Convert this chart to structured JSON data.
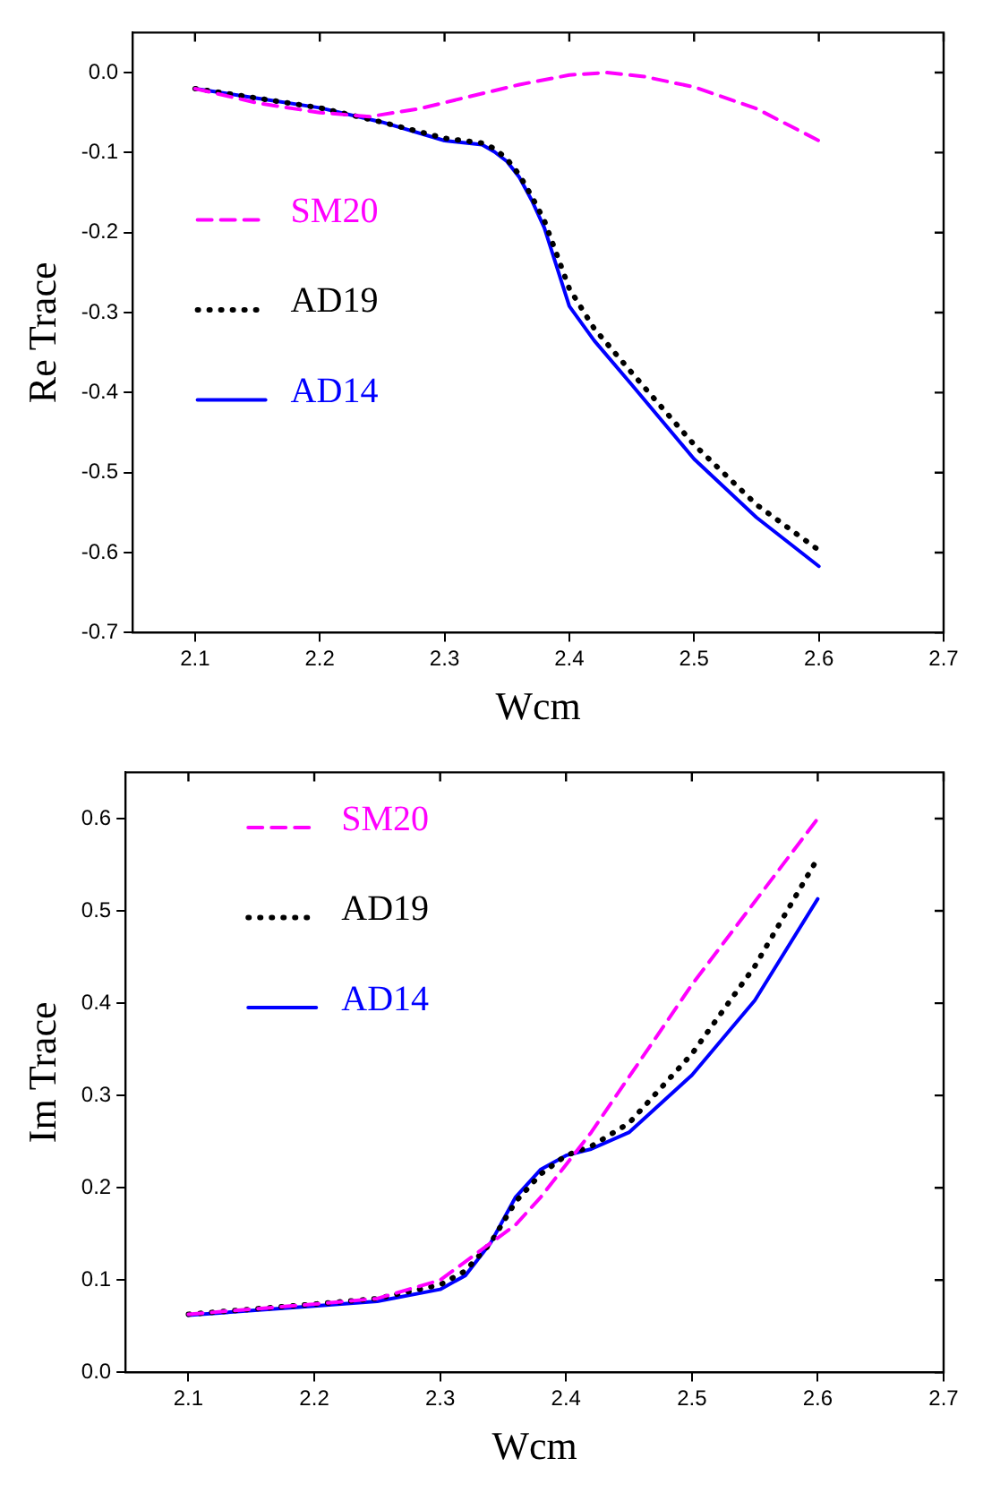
{
  "chart_data": [
    {
      "type": "line",
      "xlabel": "Wcm",
      "ylabel": "Re Trace",
      "xlim": [
        2.05,
        2.7
      ],
      "xticks": [
        2.1,
        2.2,
        2.3,
        2.4,
        2.5,
        2.6,
        2.7
      ],
      "ylim": [
        -0.7,
        0.05
      ],
      "yticks": [
        -0.7,
        -0.6,
        -0.5,
        -0.4,
        -0.3,
        -0.2,
        -0.1,
        {
          "value": 0,
          "label": "0.0"
        }
      ],
      "grid": false,
      "legend": "left",
      "marker": "none",
      "series": [
        {
          "name": "SM20",
          "color": "#ff00ff",
          "line_style": "dashed",
          "x": [
            2.1,
            2.15,
            2.2,
            2.24,
            2.28,
            2.32,
            2.36,
            2.4,
            2.43,
            2.46,
            2.5,
            2.55,
            2.6
          ],
          "values": [
            -0.02,
            -0.038,
            -0.05,
            -0.055,
            -0.045,
            -0.03,
            -0.015,
            -0.003,
            0.0,
            -0.005,
            -0.018,
            -0.045,
            -0.085
          ]
        },
        {
          "name": "AD19",
          "color": "#000000",
          "line_style": "dotted",
          "x": [
            2.1,
            2.15,
            2.2,
            2.25,
            2.3,
            2.33,
            2.34,
            2.35,
            2.36,
            2.37,
            2.38,
            2.4,
            2.42,
            2.45,
            2.5,
            2.55,
            2.6
          ],
          "values": [
            -0.02,
            -0.032,
            -0.044,
            -0.062,
            -0.082,
            -0.088,
            -0.095,
            -0.108,
            -0.128,
            -0.155,
            -0.185,
            -0.27,
            -0.32,
            -0.375,
            -0.465,
            -0.54,
            -0.597
          ]
        },
        {
          "name": "AD14",
          "color": "#0000ff",
          "line_style": "solid",
          "x": [
            2.1,
            2.15,
            2.2,
            2.25,
            2.3,
            2.33,
            2.34,
            2.35,
            2.36,
            2.37,
            2.38,
            2.4,
            2.42,
            2.45,
            2.5,
            2.55,
            2.6
          ],
          "values": [
            -0.02,
            -0.032,
            -0.044,
            -0.062,
            -0.085,
            -0.09,
            -0.099,
            -0.111,
            -0.131,
            -0.16,
            -0.194,
            -0.292,
            -0.335,
            -0.39,
            -0.483,
            -0.556,
            -0.617
          ]
        }
      ]
    },
    {
      "type": "line",
      "xlabel": "Wcm",
      "ylabel": "Im Trace",
      "xlim": [
        2.05,
        2.7
      ],
      "xticks": [
        2.1,
        2.2,
        2.3,
        2.4,
        2.5,
        2.6,
        2.7
      ],
      "ylim": [
        0,
        0.65
      ],
      "yticks": [
        {
          "value": 0,
          "label": "0.0"
        },
        0.1,
        0.2,
        0.3,
        0.4,
        0.5,
        0.6
      ],
      "grid": false,
      "legend": "top left",
      "marker": "none",
      "series": [
        {
          "name": "SM20",
          "color": "#ff00ff",
          "line_style": "dashed",
          "x": [
            2.1,
            2.2,
            2.25,
            2.3,
            2.34,
            2.36,
            2.38,
            2.4,
            2.42,
            2.45,
            2.5,
            2.55,
            2.6
          ],
          "values": [
            0.063,
            0.074,
            0.08,
            0.1,
            0.14,
            0.16,
            0.19,
            0.225,
            0.26,
            0.32,
            0.42,
            0.51,
            0.6
          ]
        },
        {
          "name": "AD19",
          "color": "#000000",
          "line_style": "dotted",
          "x": [
            2.1,
            2.2,
            2.25,
            2.3,
            2.32,
            2.34,
            2.36,
            2.38,
            2.4,
            2.42,
            2.45,
            2.5,
            2.55,
            2.6
          ],
          "values": [
            0.063,
            0.074,
            0.08,
            0.095,
            0.11,
            0.14,
            0.185,
            0.215,
            0.235,
            0.245,
            0.27,
            0.345,
            0.44,
            0.557
          ]
        },
        {
          "name": "AD14",
          "color": "#0000ff",
          "line_style": "solid",
          "x": [
            2.1,
            2.2,
            2.25,
            2.3,
            2.32,
            2.34,
            2.36,
            2.38,
            2.4,
            2.42,
            2.45,
            2.5,
            2.55,
            2.6
          ],
          "values": [
            0.062,
            0.072,
            0.077,
            0.09,
            0.105,
            0.14,
            0.19,
            0.22,
            0.235,
            0.242,
            0.26,
            0.322,
            0.403,
            0.513
          ]
        }
      ]
    }
  ]
}
